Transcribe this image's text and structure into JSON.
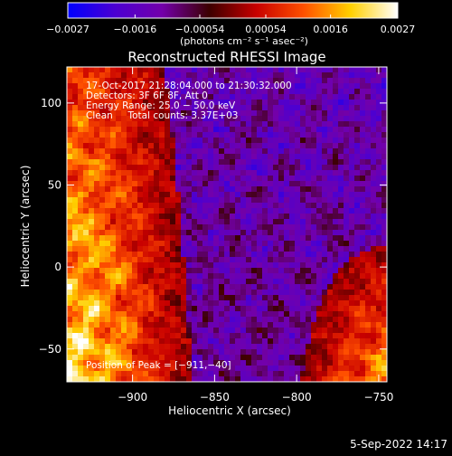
{
  "chart_data": {
    "type": "heatmap",
    "title": "Reconstructed RHESSI Image",
    "xlabel": "Heliocentric X (arcsec)",
    "ylabel": "Heliocentric Y (arcsec)",
    "xlim": [
      -940,
      -745
    ],
    "ylim": [
      -70,
      122
    ],
    "xticks": [
      -900,
      -850,
      -800,
      -750
    ],
    "xtick_labels": [
      "−900",
      "−850",
      "−800",
      "−750"
    ],
    "yticks": [
      -50,
      0,
      50,
      100
    ],
    "ytick_labels": [
      "−50",
      "0",
      "50",
      "100"
    ],
    "annotations": [
      "17-Oct-2017 21:28:04.000 to 21:30:32.000",
      "Detectors: 3F 6F 8F, Att 0",
      "Energy Range: 25.0 − 50.0 keV",
      "Clean     Total counts: 3.37E+03"
    ],
    "peak_label": "Position of Peak = [−911,−40]",
    "peak_position": [
      -911,
      -40
    ],
    "colorbar": {
      "range": [
        -0.0027,
        0.0027
      ],
      "ticks": [
        -0.0027,
        -0.0016,
        -0.00054,
        0.00054,
        0.0016,
        0.0027
      ],
      "tick_labels": [
        "−0.0027",
        "−0.0016",
        "−0.00054",
        "0.00054",
        "0.0016",
        "0.0027"
      ],
      "unit_label": "(photons cm⁻² s⁻¹ asec⁻²)",
      "colors": [
        "#0000ff",
        "#4b00d2",
        "#7300aa",
        "#3c0000",
        "#c80000",
        "#ff5000",
        "#ffd000",
        "#ffffff"
      ]
    }
  },
  "footer": {
    "date": "5-Sep-2022 14:17"
  }
}
